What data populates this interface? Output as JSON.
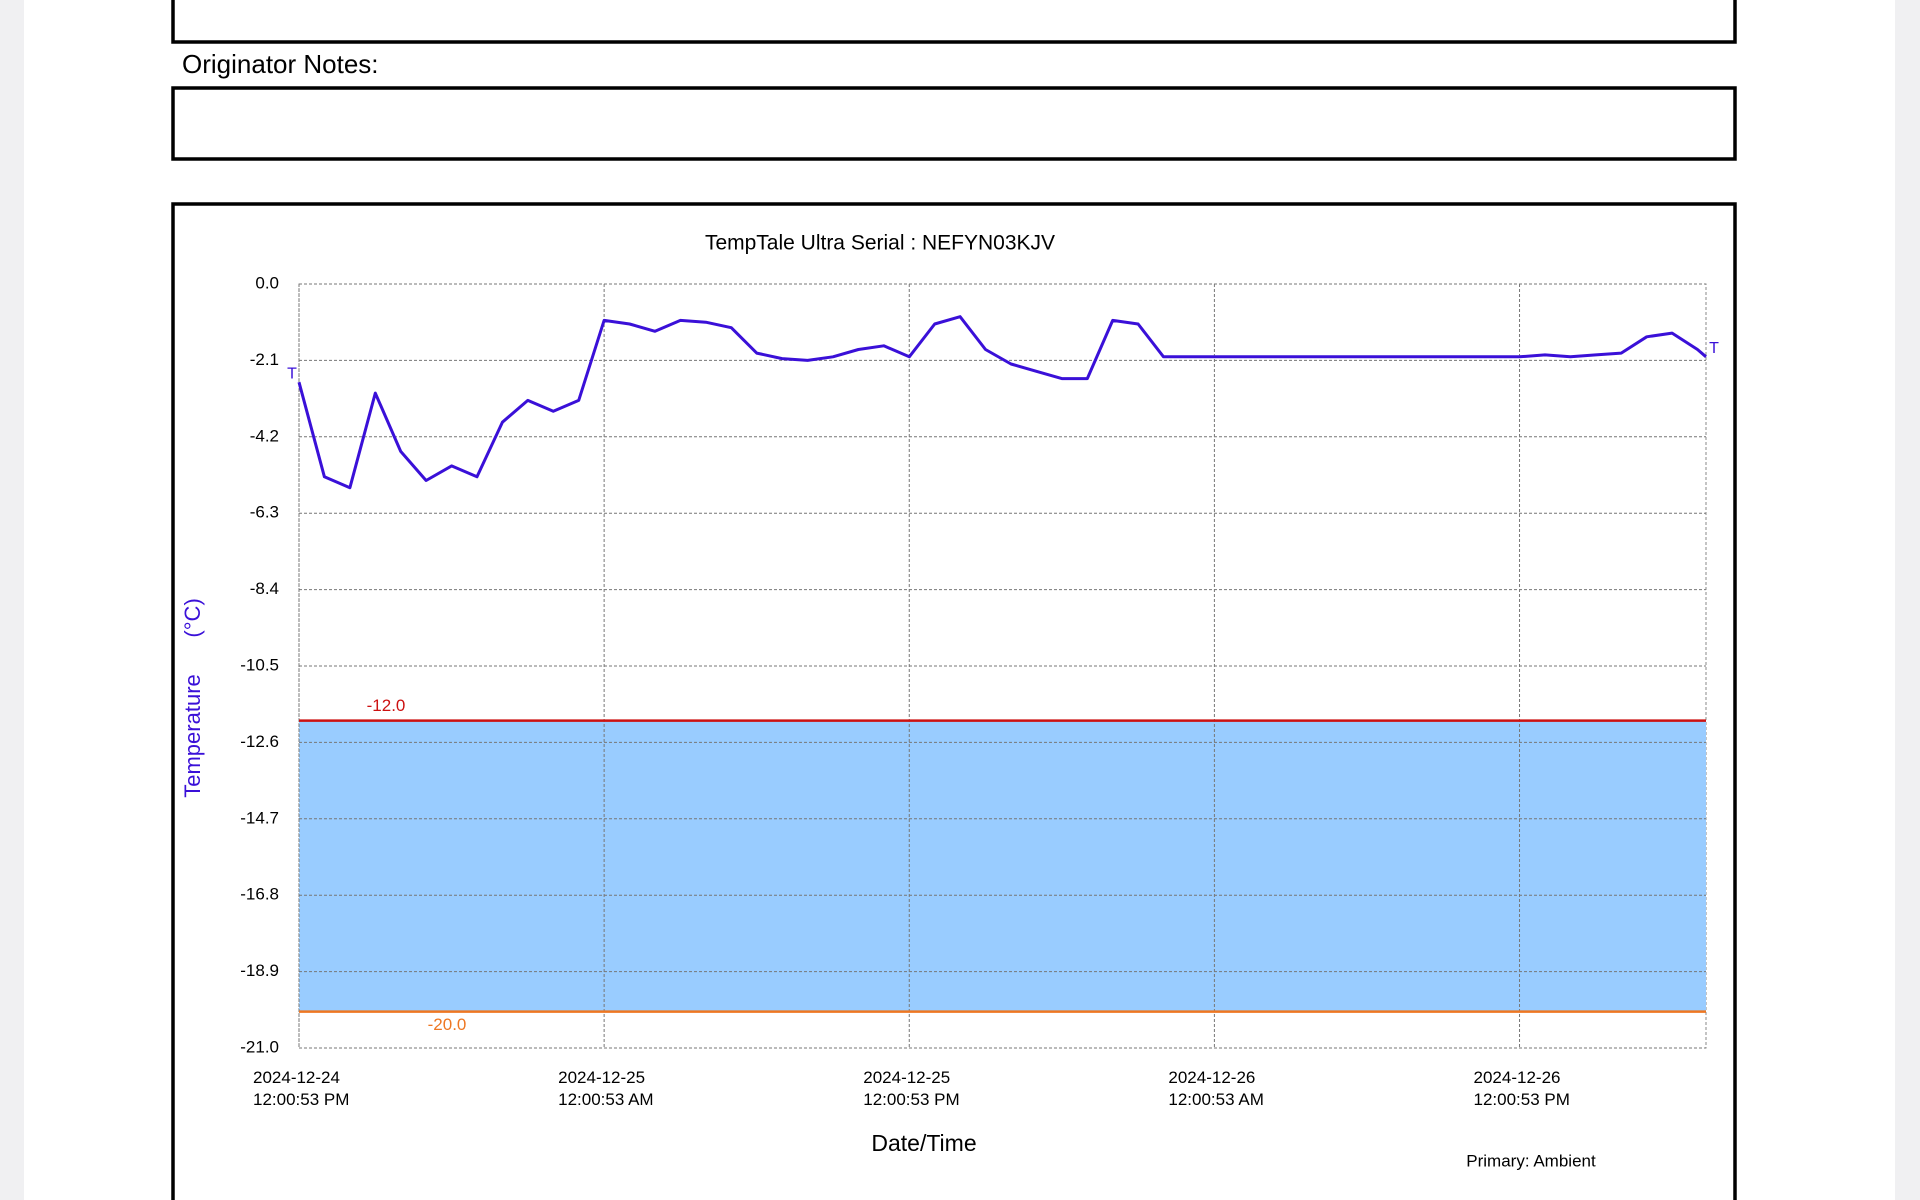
{
  "notes_label": "Originator Notes:",
  "chart_data": {
    "type": "line",
    "title": "TempTale Ultra  Serial : NEFYN03KJV",
    "y_label": "Temperature      (°C)",
    "x_label": "Date/Time",
    "footer": "Primary: Ambient",
    "point_marker": "T",
    "x": [
      "2024-12-24T12:00:53",
      "2024-12-24T13:00:53",
      "2024-12-24T14:00:53",
      "2024-12-24T15:00:53",
      "2024-12-24T16:00:53",
      "2024-12-24T17:00:53",
      "2024-12-24T18:00:53",
      "2024-12-24T19:00:53",
      "2024-12-24T20:00:53",
      "2024-12-24T21:00:53",
      "2024-12-24T22:00:53",
      "2024-12-24T23:00:53",
      "2024-12-25T00:00:53",
      "2024-12-25T01:00:53",
      "2024-12-25T02:00:53",
      "2024-12-25T03:00:53",
      "2024-12-25T04:00:53",
      "2024-12-25T05:00:53",
      "2024-12-25T06:00:53",
      "2024-12-25T07:00:53",
      "2024-12-25T08:00:53",
      "2024-12-25T09:00:53",
      "2024-12-25T10:00:53",
      "2024-12-25T11:00:53",
      "2024-12-25T12:00:53",
      "2024-12-25T13:00:53",
      "2024-12-25T14:00:53",
      "2024-12-25T15:00:53",
      "2024-12-25T16:00:53",
      "2024-12-25T17:00:53",
      "2024-12-25T18:00:53",
      "2024-12-25T19:00:53",
      "2024-12-25T20:00:53",
      "2024-12-25T21:00:53",
      "2024-12-25T22:00:53",
      "2024-12-25T23:00:53",
      "2024-12-26T00:00:53",
      "2024-12-26T01:00:53",
      "2024-12-26T02:00:53",
      "2024-12-26T03:00:53",
      "2024-12-26T04:00:53",
      "2024-12-26T05:00:53",
      "2024-12-26T06:00:53",
      "2024-12-26T07:00:53",
      "2024-12-26T08:00:53",
      "2024-12-26T09:00:53",
      "2024-12-26T10:00:53",
      "2024-12-26T11:00:53",
      "2024-12-26T12:00:53",
      "2024-12-26T13:00:53",
      "2024-12-26T14:00:53",
      "2024-12-26T15:00:53",
      "2024-12-26T16:00:53",
      "2024-12-26T17:00:53",
      "2024-12-26T18:00:53",
      "2024-12-26T19:00:53",
      "2024-12-26T19:20:53"
    ],
    "series": [
      {
        "name": "Ambient",
        "color": "#3a10d8",
        "values": [
          -2.7,
          -5.3,
          -5.6,
          -3.0,
          -4.6,
          -5.4,
          -5.0,
          -5.3,
          -3.8,
          -3.2,
          -3.5,
          -3.2,
          -1.0,
          -1.1,
          -1.3,
          -1.0,
          -1.05,
          -1.2,
          -1.9,
          -2.05,
          -2.1,
          -2.0,
          -1.8,
          -1.7,
          -2.0,
          -1.1,
          -0.9,
          -1.8,
          -2.2,
          -2.4,
          -2.6,
          -2.6,
          -1.0,
          -1.1,
          -2.0,
          -2.0,
          -2.0,
          -2.0,
          -2.0,
          -2.0,
          -2.0,
          -2.0,
          -2.0,
          -2.0,
          -2.0,
          -2.0,
          -2.0,
          -2.0,
          -2.0,
          -1.95,
          -2.0,
          -1.95,
          -1.9,
          -1.45,
          -1.35,
          -1.8,
          -2.0
        ]
      }
    ],
    "thresholds": [
      {
        "value": -12.0,
        "label": "-12.0",
        "color": "#cc1111"
      },
      {
        "value": -20.0,
        "label": "-20.0",
        "color": "#ee7722"
      }
    ],
    "band_color": "#99ccff",
    "xlim": [
      "2024-12-24T12:00:53",
      "2024-12-26T19:20:53"
    ],
    "xticks": [
      {
        "value": "2024-12-24T12:00:53",
        "label": "2024-12-24 12:00:53 PM"
      },
      {
        "value": "2024-12-25T00:00:53",
        "label": "2024-12-25 12:00:53 AM"
      },
      {
        "value": "2024-12-25T12:00:53",
        "label": "2024-12-25 12:00:53 PM"
      },
      {
        "value": "2024-12-26T00:00:53",
        "label": "2024-12-26 12:00:53 AM"
      },
      {
        "value": "2024-12-26T12:00:53",
        "label": "2024-12-26 12:00:53 PM"
      }
    ],
    "ylim": [
      -21,
      0
    ],
    "yticks": [
      {
        "value": 0,
        "label": "0.0"
      },
      -2.1,
      -4.2,
      -6.3,
      -8.4,
      -10.5,
      -12.6,
      -14.7,
      -16.8,
      -18.9,
      {
        "value": -21,
        "label": "-21.0"
      }
    ],
    "grid": true
  }
}
